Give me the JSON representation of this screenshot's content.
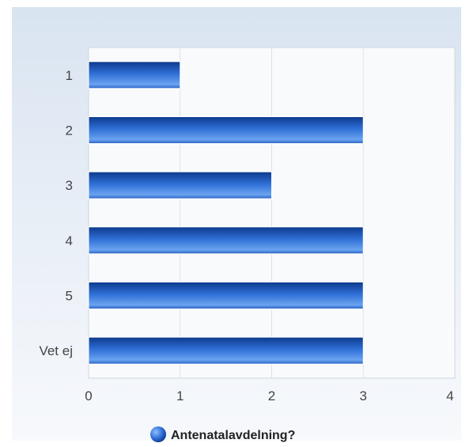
{
  "chart_data": {
    "type": "bar",
    "orientation": "horizontal",
    "categories": [
      "1",
      "2",
      "3",
      "4",
      "5",
      "Vet ej"
    ],
    "series": [
      {
        "name": "Antenatalavdelning?",
        "values": [
          1,
          3,
          2,
          3,
          3,
          3
        ]
      }
    ],
    "x_ticks": [
      "0",
      "1",
      "2",
      "3",
      "4"
    ],
    "xlim": [
      0,
      4
    ],
    "title": "",
    "xlabel": "",
    "ylabel": "",
    "grid": true,
    "legend_position": "bottom-center",
    "colors": {
      "bar_light": "#5b95e8",
      "bar_dark": "#0d3a8c",
      "grid": "#dde2e8",
      "plot_bg": "#f9fafc"
    }
  }
}
